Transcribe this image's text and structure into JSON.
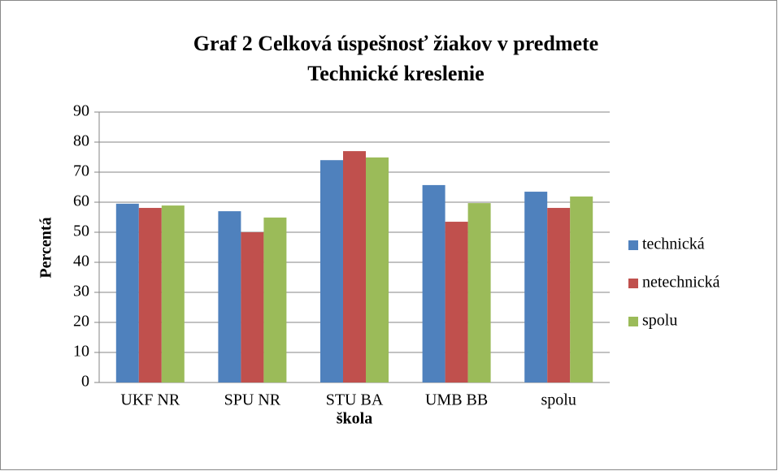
{
  "chart_data": {
    "type": "bar",
    "title": [
      "Graf 2 Celková úspešnosť žiakov v predmete",
      "Technické kreslenie"
    ],
    "x_label": "škola",
    "y_label": "Percentá",
    "categories": [
      "UKF NR",
      "SPU NR",
      "STU BA",
      "UMB BB",
      "spolu"
    ],
    "series": [
      {
        "name": "technická",
        "color": "#4f81bd",
        "values": [
          59.5,
          57,
          74,
          65.7,
          63.5
        ]
      },
      {
        "name": "netechnická",
        "color": "#c0504d",
        "values": [
          58.1,
          50,
          77,
          53.5,
          58.1
        ]
      },
      {
        "name": "spolu",
        "color": "#9bbb59",
        "values": [
          58.9,
          54.9,
          74.9,
          59.7,
          61.9
        ]
      }
    ],
    "ylim": [
      0,
      90
    ],
    "yticks": [
      0,
      10,
      20,
      30,
      40,
      50,
      60,
      70,
      80,
      90
    ],
    "grid": true,
    "legend": "right"
  }
}
